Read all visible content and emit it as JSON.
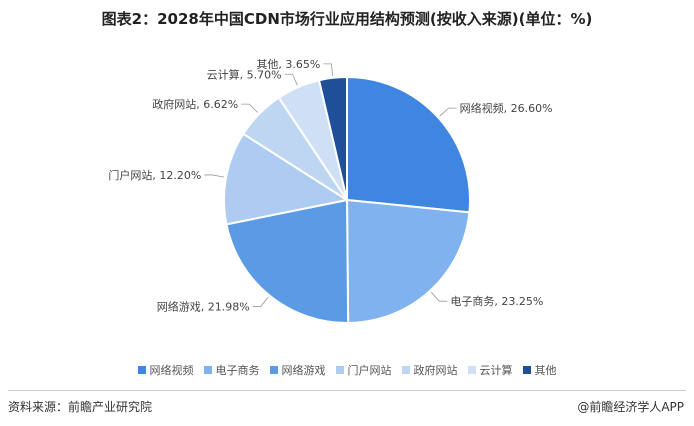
{
  "chart_data": {
    "type": "pie",
    "title": "图表2：2028年中国CDN市场行业应用结构预测(按收入来源)(单位：%)",
    "categories": [
      "网络视频",
      "电子商务",
      "网络游戏",
      "门户网站",
      "政府网站",
      "云计算",
      "其他"
    ],
    "values": [
      26.6,
      23.25,
      21.98,
      12.2,
      6.62,
      5.7,
      3.65
    ],
    "data_labels": [
      "网络视频, 26.60%",
      "电子商务, 23.25%",
      "网络游戏, 21.98%",
      "门户网站, 12.20%",
      "政府网站, 6.62%",
      "云计算, 5.70%",
      "其他, 3.65%"
    ],
    "colors": [
      "#3f86e0",
      "#7fb2ee",
      "#5b9be6",
      "#aecbf2",
      "#bfd6f3",
      "#cfe0f6",
      "#1f4f99"
    ],
    "legend_position": "bottom"
  },
  "footer": {
    "source": "资料来源：前瞻产业研究院",
    "brand": "@前瞻经济学人APP"
  }
}
